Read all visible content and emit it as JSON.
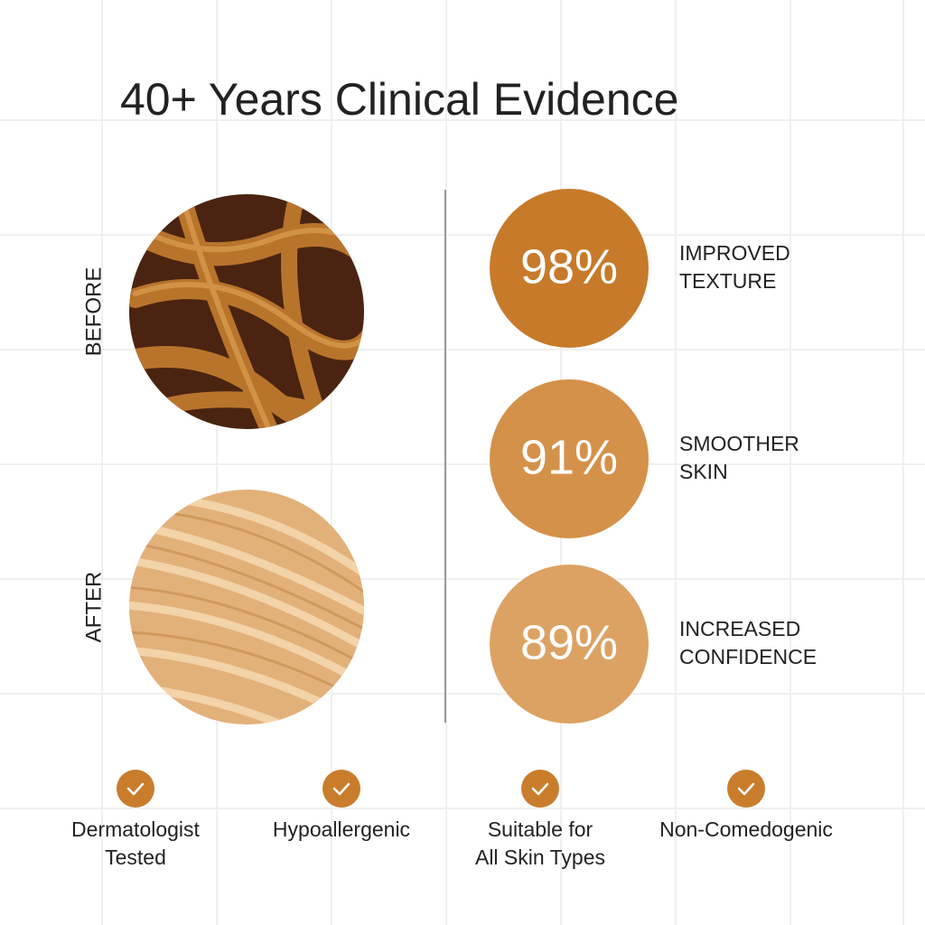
{
  "header": {
    "title": "40+ Years Clinical Evidence"
  },
  "comparison": {
    "before": "BEFORE",
    "after": "AFTER"
  },
  "stats": [
    {
      "value": "98%",
      "label": [
        "IMPROVED",
        "TEXTURE"
      ]
    },
    {
      "value": "91%",
      "label": [
        "SMOOTHER",
        "SKIN"
      ]
    },
    {
      "value": "89%",
      "label": [
        "INCREASED",
        "CONFIDENCE"
      ]
    }
  ],
  "badges": [
    [
      "Dermatologist",
      "Tested"
    ],
    [
      "Hypoallergenic"
    ],
    [
      "Suitable for",
      "All Skin Types"
    ],
    [
      "Non-Comedogenic"
    ]
  ]
}
